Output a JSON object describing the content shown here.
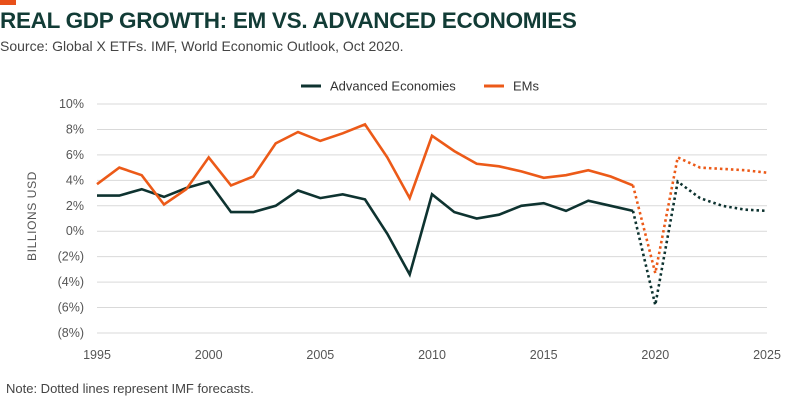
{
  "header": {
    "title": "REAL GDP GROWTH: EM VS. ADVANCED ECONOMIES",
    "subtitle": "Source: Global X ETFs. IMF, World Economic Outlook, Oct 2020.",
    "accent_color": "#e8501a"
  },
  "footer": {
    "note": "Note: Dotted lines represent IMF forecasts."
  },
  "chart_data": {
    "type": "line",
    "title": "REAL GDP GROWTH: EM VS. ADVANCED ECONOMIES",
    "xlabel": "",
    "ylabel": "BILLIONS USD",
    "xlim": [
      1995,
      2025
    ],
    "ylim": [
      -8,
      10
    ],
    "x_ticks": [
      1995,
      2000,
      2005,
      2010,
      2015,
      2020,
      2025
    ],
    "y_ticks": [
      10,
      8,
      6,
      4,
      2,
      0,
      -2,
      -4,
      -6,
      -8
    ],
    "y_tick_labels": [
      "10%",
      "8%",
      "6%",
      "4%",
      "2%",
      "0%",
      "(2%)",
      "(4%)",
      "(6%)",
      "(8%)"
    ],
    "grid": "horizontal",
    "legend_position": "top-center",
    "forecast_start": 2019,
    "series": [
      {
        "name": "Advanced Economies",
        "color": "#0e3330",
        "x": [
          1995,
          1996,
          1997,
          1998,
          1999,
          2000,
          2001,
          2002,
          2003,
          2004,
          2005,
          2006,
          2007,
          2008,
          2009,
          2010,
          2011,
          2012,
          2013,
          2014,
          2015,
          2016,
          2017,
          2018,
          2019,
          2020,
          2021,
          2022,
          2023,
          2024,
          2025
        ],
        "values": [
          2.8,
          2.8,
          3.3,
          2.7,
          3.4,
          3.9,
          1.5,
          1.5,
          2.0,
          3.2,
          2.6,
          2.9,
          2.5,
          -0.2,
          -3.4,
          2.9,
          1.5,
          1.0,
          1.3,
          2.0,
          2.2,
          1.6,
          2.4,
          2.0,
          1.6,
          -5.8,
          3.9,
          2.6,
          2.0,
          1.7,
          1.6
        ]
      },
      {
        "name": "EMs",
        "color": "#ec5a18",
        "x": [
          1995,
          1996,
          1997,
          1998,
          1999,
          2000,
          2001,
          2002,
          2003,
          2004,
          2005,
          2006,
          2007,
          2008,
          2009,
          2010,
          2011,
          2012,
          2013,
          2014,
          2015,
          2016,
          2017,
          2018,
          2019,
          2020,
          2021,
          2022,
          2023,
          2024,
          2025
        ],
        "values": [
          3.7,
          5.0,
          4.4,
          2.1,
          3.3,
          5.8,
          3.6,
          4.3,
          6.9,
          7.8,
          7.1,
          7.7,
          8.4,
          5.8,
          2.6,
          7.5,
          6.3,
          5.3,
          5.1,
          4.7,
          4.2,
          4.4,
          4.8,
          4.3,
          3.6,
          -3.3,
          5.8,
          5.0,
          4.9,
          4.8,
          4.6
        ]
      }
    ]
  }
}
